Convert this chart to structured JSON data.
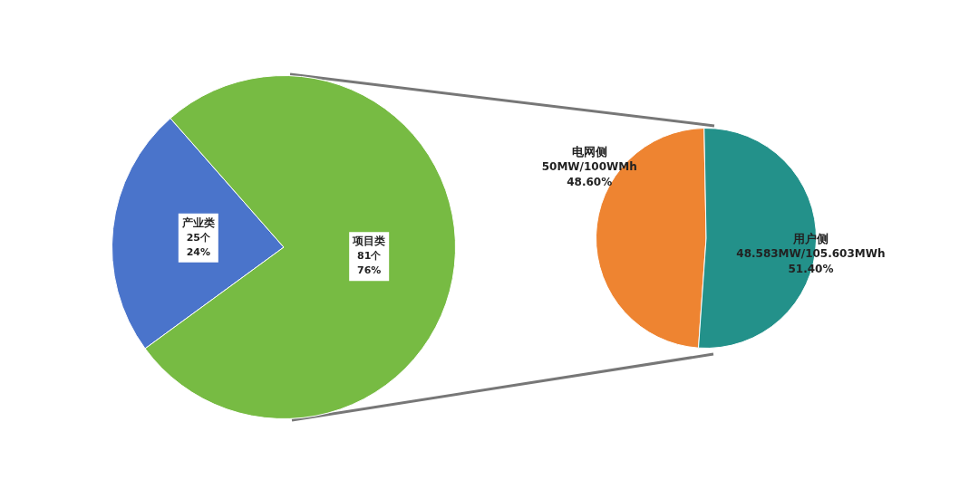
{
  "chart_data": [
    {
      "type": "pie",
      "categories": [
        "产业类",
        "项目类"
      ],
      "values": [
        25,
        81
      ],
      "colors": [
        "#4a74cb",
        "#77bb43"
      ],
      "value_labels": [
        "25个\n24%",
        "81个\n76%"
      ]
    },
    {
      "type": "pie",
      "categories": [
        "电网侧",
        "用户侧"
      ],
      "values": [
        48.6,
        51.4
      ],
      "colors": [
        "#ee8431",
        "#23918a"
      ],
      "value_labels": [
        "50MW/100WMh\n48.60%",
        "48.583MW/105.603MWh\n51.40%"
      ]
    }
  ]
}
